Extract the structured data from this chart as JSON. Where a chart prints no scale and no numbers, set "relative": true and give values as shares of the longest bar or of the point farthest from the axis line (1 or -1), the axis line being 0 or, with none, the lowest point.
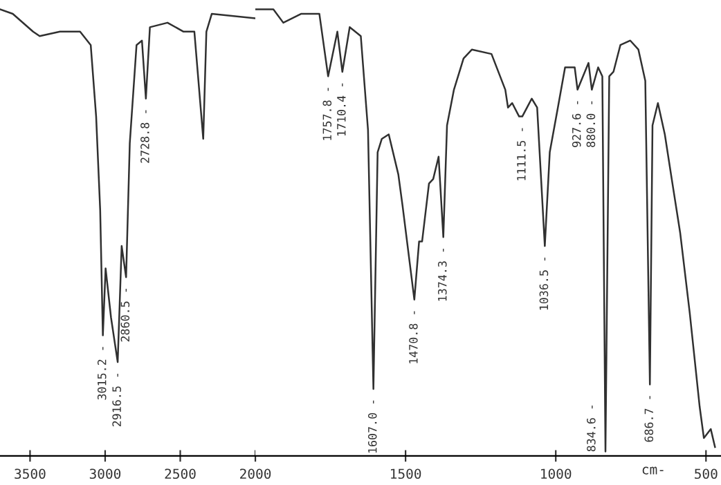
{
  "chart_data": [
    {
      "type": "line",
      "relative": true,
      "color": "#303030",
      "grid": false,
      "legend": false,
      "x": [
        3700,
        3615,
        3480,
        3436,
        3301,
        3167,
        3096,
        3060,
        3033,
        3015.2,
        2997,
        2961,
        2916.5,
        2890,
        2860.5,
        2836,
        2791,
        2755,
        2728.8,
        2702,
        2585,
        2478,
        2406,
        2347,
        2326,
        2290,
        2000
      ],
      "values": [
        1.0,
        0.99,
        0.95,
        0.94,
        0.95,
        0.95,
        0.92,
        0.76,
        0.55,
        0.27,
        0.42,
        0.31,
        0.21,
        0.47,
        0.4,
        0.7,
        0.92,
        0.93,
        0.8,
        0.96,
        0.97,
        0.95,
        0.95,
        0.71,
        0.95,
        0.99,
        0.98
      ],
      "xlim": [
        3700,
        2000
      ],
      "xticks": [
        3500,
        3000,
        2500,
        2000
      ],
      "tick_labels": "x",
      "annotations": [
        {
          "text": "3015.2 -",
          "x": 3015.2,
          "y": 0.27
        },
        {
          "text": "2916.5 -",
          "x": 2916.5,
          "y": 0.21
        },
        {
          "text": "2860.5 -",
          "x": 2860.5,
          "y": 0.4
        },
        {
          "text": "2728.8 -",
          "x": 2728.8,
          "y": 0.8
        }
      ]
    },
    {
      "type": "line",
      "relative": true,
      "color": "#303030",
      "grid": false,
      "legend": false,
      "x": [
        2000,
        1940,
        1907,
        1847,
        1787,
        1757.8,
        1727,
        1710.4,
        1686,
        1649,
        1625,
        1607.0,
        1593,
        1579,
        1556,
        1524,
        1510,
        1470.8,
        1455,
        1445,
        1422,
        1408,
        1390,
        1374.3,
        1362,
        1339,
        1307,
        1279,
        1214,
        1168,
        1159,
        1145,
        1122,
        1111.5,
        1080,
        1062,
        1036.5,
        1020,
        993,
        969,
        937,
        927.6,
        891,
        880.0,
        859,
        845,
        834.6,
        822,
        808,
        785,
        752,
        725,
        702,
        686.7,
        678,
        660,
        637,
        614,
        586,
        554,
        521,
        507,
        484,
        470
      ],
      "values": [
        1.0,
        1.0,
        0.97,
        0.99,
        0.99,
        0.85,
        0.95,
        0.86,
        0.96,
        0.94,
        0.73,
        0.15,
        0.68,
        0.71,
        0.72,
        0.63,
        0.56,
        0.35,
        0.48,
        0.48,
        0.61,
        0.62,
        0.67,
        0.49,
        0.74,
        0.82,
        0.89,
        0.91,
        0.9,
        0.82,
        0.78,
        0.79,
        0.76,
        0.76,
        0.8,
        0.78,
        0.47,
        0.68,
        0.78,
        0.87,
        0.87,
        0.82,
        0.88,
        0.82,
        0.87,
        0.85,
        0.01,
        0.85,
        0.86,
        0.92,
        0.93,
        0.91,
        0.84,
        0.16,
        0.74,
        0.79,
        0.72,
        0.62,
        0.5,
        0.32,
        0.11,
        0.04,
        0.06,
        0.02
      ],
      "xlim": [
        2000,
        450
      ],
      "xticks": [
        1500,
        1000,
        500
      ],
      "xlabel": "cm-",
      "tick_labels": "x",
      "annotations": [
        {
          "text": "1757.8 -",
          "x": 1757.8,
          "y": 0.85
        },
        {
          "text": "1710.4 -",
          "x": 1710.4,
          "y": 0.86
        },
        {
          "text": "1607.0 -",
          "x": 1607.0,
          "y": 0.15
        },
        {
          "text": "1470.8 -",
          "x": 1470.8,
          "y": 0.35
        },
        {
          "text": "1374.3 -",
          "x": 1374.3,
          "y": 0.49
        },
        {
          "text": "1111.5 -",
          "x": 1111.5,
          "y": 0.76
        },
        {
          "text": "1036.5 -",
          "x": 1036.5,
          "y": 0.47
        },
        {
          "text": "927.6 -",
          "x": 927.6,
          "y": 0.82
        },
        {
          "text": "880.0 -",
          "x": 880.0,
          "y": 0.82
        },
        {
          "text": "834.6 -",
          "x": 834.6,
          "y": 0.01
        },
        {
          "text": "686.7 -",
          "x": 686.7,
          "y": 0.16
        }
      ]
    }
  ]
}
